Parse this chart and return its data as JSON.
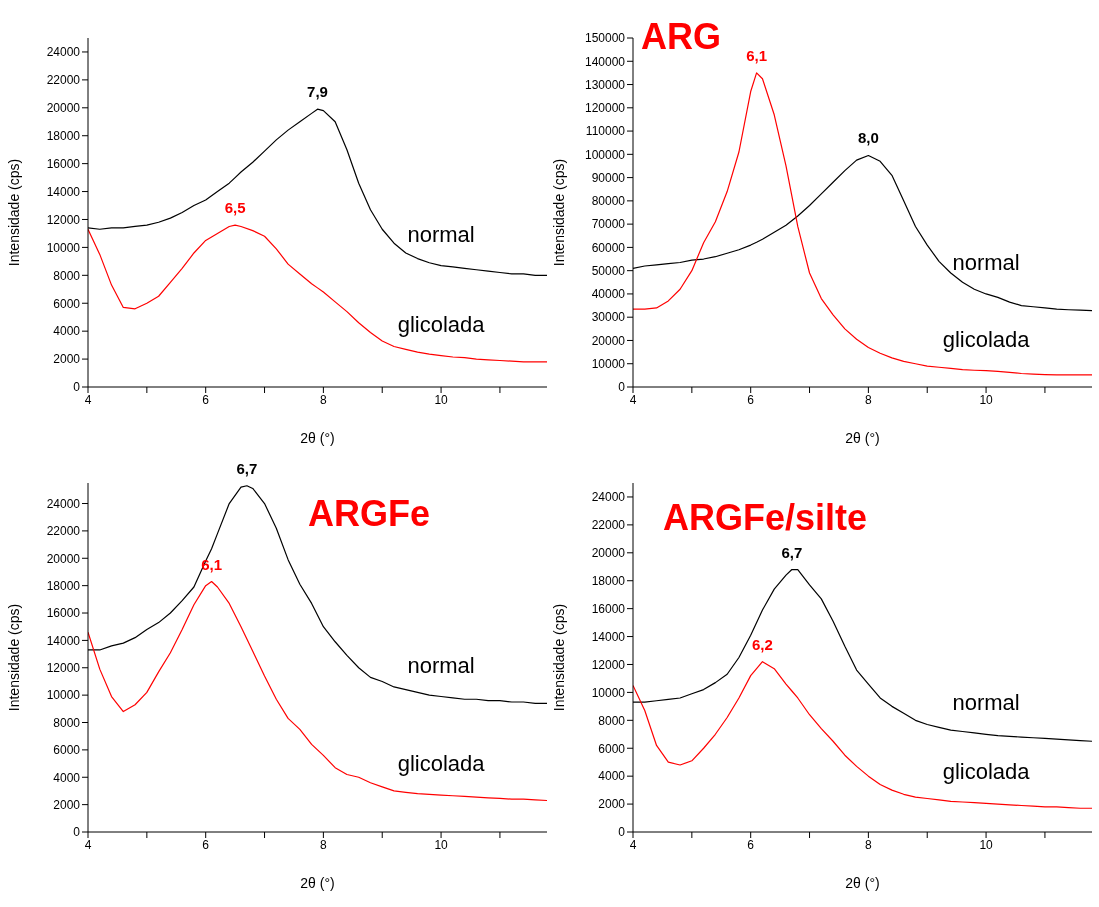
{
  "chart_data": [
    {
      "type": "line",
      "xlabel": "2θ (°)",
      "ylabel": "Intensidade (cps)",
      "xlim": [
        4,
        11.8
      ],
      "xticks": [
        4,
        {
          "value": 5,
          "label": null
        },
        6,
        {
          "value": 7,
          "label": null
        },
        8,
        {
          "value": 9,
          "label": null
        },
        10,
        {
          "value": 11,
          "label": null
        }
      ],
      "ylim": [
        0,
        25000
      ],
      "yticks": [
        0,
        2000,
        4000,
        6000,
        8000,
        10000,
        12000,
        14000,
        16000,
        18000,
        20000,
        22000,
        24000
      ],
      "x": [
        4,
        4.2,
        4.4,
        4.6,
        4.8,
        5,
        5.2,
        5.4,
        5.6,
        5.8,
        6,
        6.2,
        6.4,
        6.5,
        6.6,
        6.8,
        7,
        7.2,
        7.4,
        7.6,
        7.8,
        7.9,
        8,
        8.2,
        8.4,
        8.6,
        8.8,
        9,
        9.2,
        9.4,
        9.6,
        9.8,
        10,
        10.2,
        10.4,
        10.6,
        10.8,
        11,
        11.2,
        11.4,
        11.6,
        11.8
      ],
      "series": [
        {
          "name": "normal",
          "color": "#000000",
          "values": [
            11400,
            11300,
            11400,
            11400,
            11500,
            11600,
            11800,
            12100,
            12500,
            13000,
            13400,
            14000,
            14600,
            15000,
            15400,
            16100,
            16900,
            17700,
            18400,
            19000,
            19600,
            19900,
            19800,
            19000,
            17000,
            14600,
            12700,
            11300,
            10300,
            9600,
            9200,
            8900,
            8700,
            8600,
            8500,
            8400,
            8300,
            8200,
            8100,
            8100,
            8000,
            8000
          ]
        },
        {
          "name": "glicolada",
          "color": "#ff0000",
          "values": [
            11300,
            9500,
            7300,
            5700,
            5600,
            6000,
            6500,
            7500,
            8500,
            9600,
            10500,
            11000,
            11500,
            11600,
            11500,
            11200,
            10800,
            9900,
            8800,
            8100,
            7400,
            7100,
            6800,
            6100,
            5400,
            4600,
            3900,
            3300,
            2900,
            2700,
            2500,
            2350,
            2250,
            2150,
            2100,
            2000,
            1950,
            1900,
            1850,
            1800,
            1800,
            1800
          ]
        }
      ],
      "annotations": [
        {
          "text": "7,9",
          "x": 7.9,
          "y": 19900
        },
        {
          "text": "6,5",
          "x": 6.5,
          "y": 11600
        }
      ]
    },
    {
      "type": "line",
      "title": "ARG",
      "xlabel": "2θ (°)",
      "ylabel": "Intensidade (cps)",
      "xlim": [
        4,
        11.8
      ],
      "xticks": [
        4,
        {
          "value": 5,
          "label": null
        },
        6,
        {
          "value": 7,
          "label": null
        },
        8,
        {
          "value": 9,
          "label": null
        },
        10,
        {
          "value": 11,
          "label": null
        }
      ],
      "ylim": [
        0,
        150000
      ],
      "yticks": [
        0,
        10000,
        20000,
        30000,
        40000,
        50000,
        60000,
        70000,
        80000,
        90000,
        100000,
        110000,
        120000,
        130000,
        140000,
        150000
      ],
      "x": [
        4,
        4.2,
        4.4,
        4.6,
        4.8,
        5,
        5.2,
        5.4,
        5.6,
        5.8,
        6,
        6.1,
        6.2,
        6.4,
        6.6,
        6.8,
        7,
        7.2,
        7.4,
        7.6,
        7.8,
        8,
        8.2,
        8.4,
        8.6,
        8.8,
        9,
        9.2,
        9.4,
        9.6,
        9.8,
        10,
        10.2,
        10.4,
        10.6,
        10.8,
        11,
        11.2,
        11.4,
        11.6,
        11.8
      ],
      "series": [
        {
          "name": "normal",
          "color": "#000000",
          "values": [
            51000,
            52000,
            52500,
            53000,
            53500,
            54500,
            55000,
            56000,
            57500,
            59000,
            61000,
            62200,
            63500,
            66500,
            69500,
            73500,
            78000,
            83000,
            88000,
            93000,
            97500,
            99500,
            97000,
            91000,
            80000,
            69000,
            61000,
            54000,
            49000,
            45000,
            42000,
            40000,
            38500,
            36500,
            35000,
            34500,
            34000,
            33500,
            33200,
            33000,
            32800
          ]
        },
        {
          "name": "glicolada",
          "color": "#ff0000",
          "values": [
            33500,
            33500,
            34000,
            37000,
            42000,
            50000,
            62000,
            71000,
            84000,
            101000,
            127000,
            135000,
            132500,
            117000,
            95000,
            69000,
            49000,
            38000,
            31000,
            25000,
            20500,
            17000,
            14500,
            12500,
            11000,
            10000,
            9000,
            8500,
            8000,
            7500,
            7200,
            7000,
            6700,
            6300,
            5800,
            5500,
            5300,
            5200,
            5200,
            5200,
            5200
          ]
        }
      ],
      "annotations": [
        {
          "text": "6,1",
          "x": 6.1,
          "y": 135000
        },
        {
          "text": "8,0",
          "x": 8,
          "y": 99500
        }
      ]
    },
    {
      "type": "line",
      "title": "ARGFe",
      "xlabel": "2θ (°)",
      "ylabel": "Intensidade (cps)",
      "xlim": [
        4,
        11.8
      ],
      "xticks": [
        4,
        {
          "value": 5,
          "label": null
        },
        6,
        {
          "value": 7,
          "label": null
        },
        8,
        {
          "value": 9,
          "label": null
        },
        10,
        {
          "value": 11,
          "label": null
        }
      ],
      "ylim": [
        0,
        25500
      ],
      "yticks": [
        0,
        2000,
        4000,
        6000,
        8000,
        10000,
        12000,
        14000,
        16000,
        18000,
        20000,
        22000,
        24000
      ],
      "x": [
        4,
        4.2,
        4.4,
        4.6,
        4.8,
        5,
        5.2,
        5.4,
        5.6,
        5.8,
        6,
        6.1,
        6.2,
        6.4,
        6.6,
        6.7,
        6.8,
        7,
        7.2,
        7.4,
        7.6,
        7.8,
        8,
        8.2,
        8.4,
        8.6,
        8.8,
        9,
        9.2,
        9.4,
        9.6,
        9.8,
        10,
        10.2,
        10.4,
        10.6,
        10.8,
        11,
        11.2,
        11.4,
        11.6,
        11.8
      ],
      "series": [
        {
          "name": "normal",
          "color": "#000000",
          "values": [
            13300,
            13300,
            13600,
            13800,
            14200,
            14800,
            15300,
            16000,
            16900,
            17900,
            19800,
            20700,
            21800,
            24000,
            25200,
            25300,
            25100,
            24000,
            22200,
            19900,
            18100,
            16700,
            15000,
            13900,
            12900,
            12000,
            11300,
            11000,
            10600,
            10400,
            10200,
            10000,
            9900,
            9800,
            9700,
            9700,
            9600,
            9600,
            9500,
            9500,
            9400,
            9400
          ]
        },
        {
          "name": "glicolada",
          "color": "#ff0000",
          "values": [
            14600,
            11900,
            9900,
            8800,
            9300,
            10200,
            11700,
            13100,
            14800,
            16600,
            18000,
            18300,
            17900,
            16700,
            15000,
            14100,
            13200,
            11400,
            9700,
            8300,
            7500,
            6400,
            5600,
            4700,
            4200,
            4000,
            3600,
            3300,
            3000,
            2900,
            2800,
            2750,
            2700,
            2650,
            2600,
            2550,
            2500,
            2450,
            2400,
            2400,
            2350,
            2300
          ]
        }
      ],
      "annotations": [
        {
          "text": "6,7",
          "x": 6.7,
          "y": 25300
        },
        {
          "text": "6,1",
          "x": 6.1,
          "y": 18300
        }
      ]
    },
    {
      "type": "line",
      "title": "ARGFe/silte",
      "xlabel": "2θ (°)",
      "ylabel": "Intensidade (cps)",
      "xlim": [
        4,
        11.8
      ],
      "xticks": [
        4,
        {
          "value": 5,
          "label": null
        },
        6,
        {
          "value": 7,
          "label": null
        },
        8,
        {
          "value": 9,
          "label": null
        },
        10,
        {
          "value": 11,
          "label": null
        }
      ],
      "ylim": [
        0,
        25000
      ],
      "yticks": [
        0,
        2000,
        4000,
        6000,
        8000,
        10000,
        12000,
        14000,
        16000,
        18000,
        20000,
        22000,
        24000
      ],
      "x": [
        4,
        4.2,
        4.4,
        4.6,
        4.8,
        5,
        5.2,
        5.4,
        5.6,
        5.8,
        6,
        6.2,
        6.4,
        6.6,
        6.7,
        6.8,
        7,
        7.2,
        7.4,
        7.6,
        7.8,
        8,
        8.2,
        8.4,
        8.6,
        8.8,
        9,
        9.2,
        9.4,
        9.6,
        9.8,
        10,
        10.2,
        10.4,
        10.6,
        10.8,
        11,
        11.2,
        11.4,
        11.6,
        11.8
      ],
      "series": [
        {
          "name": "normal",
          "color": "#000000",
          "values": [
            9300,
            9300,
            9400,
            9500,
            9600,
            9900,
            10200,
            10700,
            11300,
            12500,
            14100,
            15900,
            17400,
            18400,
            18800,
            18800,
            17700,
            16700,
            15100,
            13300,
            11600,
            10600,
            9600,
            9000,
            8500,
            8000,
            7700,
            7500,
            7300,
            7200,
            7100,
            7000,
            6900,
            6850,
            6800,
            6750,
            6700,
            6650,
            6600,
            6550,
            6500
          ]
        },
        {
          "name": "glicolada",
          "color": "#ff0000",
          "values": [
            10500,
            8700,
            6200,
            5000,
            4800,
            5100,
            6000,
            7000,
            8200,
            9600,
            11200,
            12200,
            11700,
            10600,
            10100,
            9600,
            8400,
            7400,
            6500,
            5500,
            4700,
            4000,
            3400,
            3000,
            2700,
            2500,
            2400,
            2300,
            2200,
            2150,
            2100,
            2050,
            2000,
            1950,
            1900,
            1850,
            1800,
            1800,
            1750,
            1700,
            1700
          ]
        }
      ],
      "annotations": [
        {
          "text": "6,7",
          "x": 6.7,
          "y": 18800
        },
        {
          "text": "6,2",
          "x": 6.2,
          "y": 12200
        }
      ]
    }
  ]
}
